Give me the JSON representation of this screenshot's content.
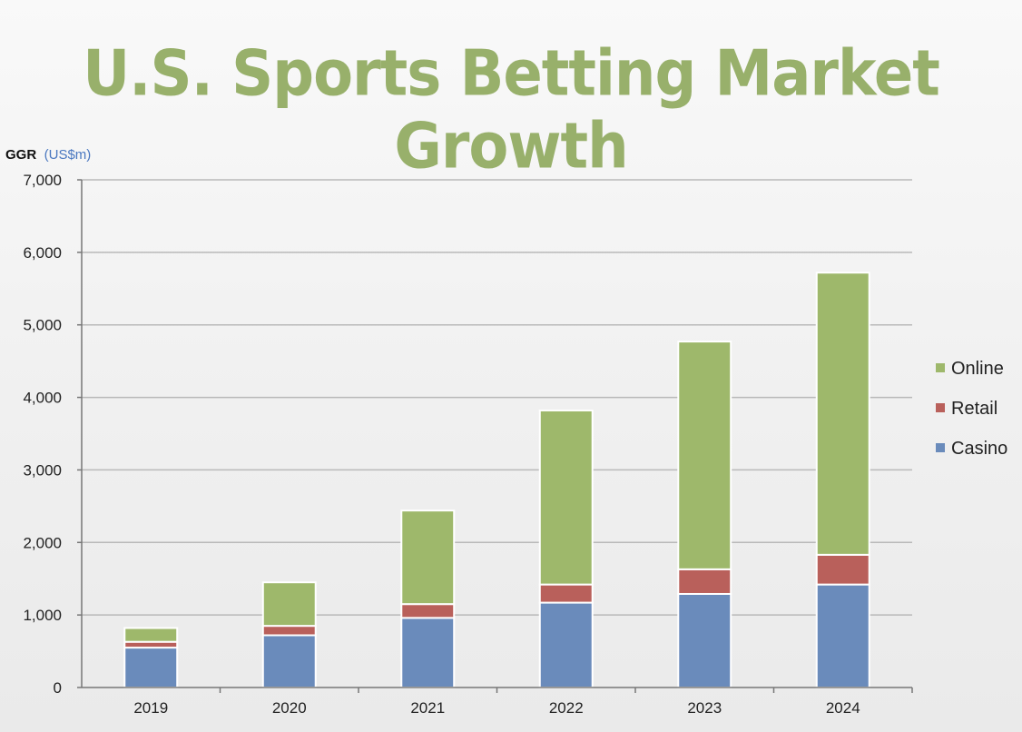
{
  "page": {
    "title": "U.S. Sports Betting Market Growth"
  },
  "chart_data": {
    "type": "bar",
    "stacked": true,
    "title": "U.S. Sports Betting Market Growth",
    "ylabel_main": "GGR",
    "ylabel_unit": "(US$m)",
    "categories": [
      "2019",
      "2020",
      "2021",
      "2022",
      "2023",
      "2024"
    ],
    "ylim": [
      0,
      7000
    ],
    "yticks": [
      0,
      1000,
      2000,
      3000,
      4000,
      5000,
      6000,
      7000
    ],
    "ytick_labels": [
      "0",
      "1,000",
      "2,000",
      "3,000",
      "4,000",
      "5,000",
      "6,000",
      "7,000"
    ],
    "grid": true,
    "legend_position": "right",
    "legend_order": [
      "Online",
      "Retail",
      "Casino"
    ],
    "series": [
      {
        "name": "Casino",
        "color": "#6a8bbb",
        "values": [
          550,
          720,
          960,
          1170,
          1290,
          1420
        ]
      },
      {
        "name": "Retail",
        "color": "#b9605b",
        "values": [
          80,
          130,
          190,
          250,
          340,
          410
        ]
      },
      {
        "name": "Online",
        "color": "#9eb86b",
        "values": [
          190,
          600,
          1290,
          2400,
          3140,
          3890
        ]
      }
    ]
  }
}
